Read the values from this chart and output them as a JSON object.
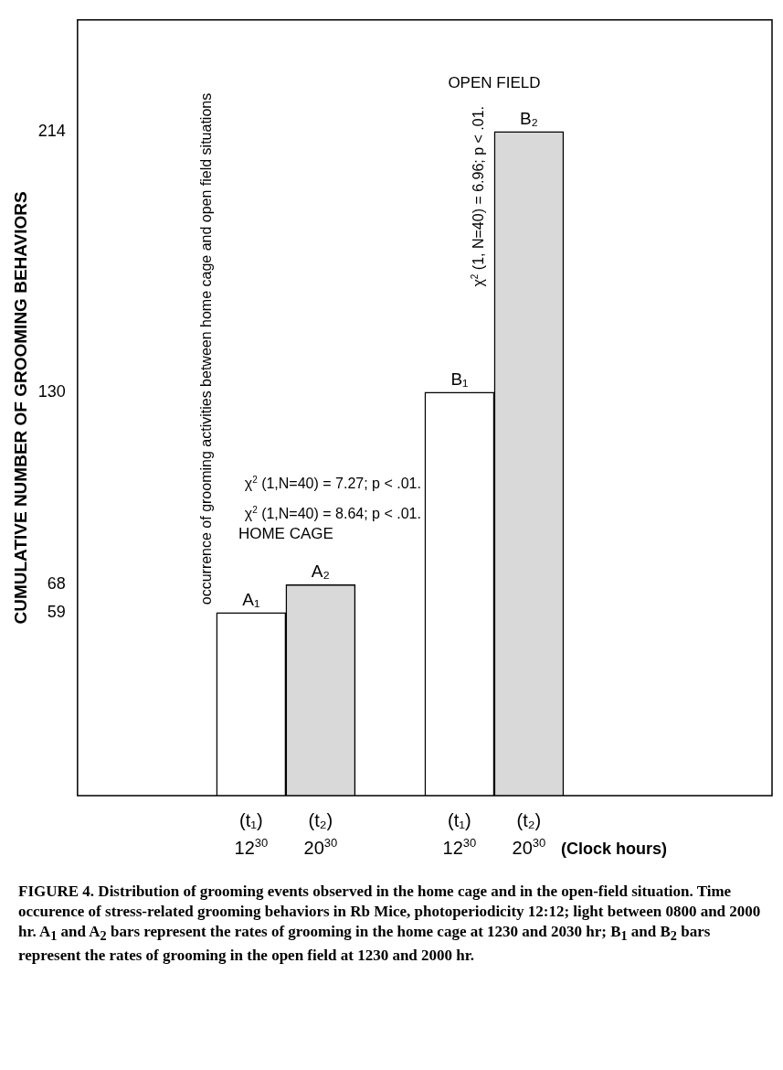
{
  "chart_data": {
    "type": "bar",
    "ylabel": "CUMULATIVE NUMBER OF GROOMING BEHAVIORS",
    "xlabel": "(Clock hours)",
    "categories": [
      null,
      null,
      "(t₁)\n12$^{30}$",
      "(t₂)\n20$^{30}$",
      null,
      "(t₁)\n12$^{30}$",
      "(t₂)\n20$^{30}$",
      null,
      null,
      null
    ],
    "values": [
      null,
      null,
      59,
      68,
      null,
      130,
      214,
      null,
      null,
      null
    ],
    "colors": [
      "#ffffff",
      "#ffffff",
      "#ffffff",
      "#d9d9d9",
      "#ffffff",
      "#ffffff",
      "#d9d9d9",
      "#ffffff",
      "#ffffff",
      "#ffffff"
    ],
    "value_labels": [
      null,
      null,
      "A₁",
      "A₂",
      null,
      "B₁",
      "B₂",
      null,
      null,
      null
    ],
    "ylim": [
      0,
      250
    ],
    "yticks": [
      59,
      68,
      130,
      214
    ],
    "legend": false,
    "annotations": [
      "HOME CAGE",
      "OPEN FIELD",
      "χ$^{2}$ (1,N=40) = 7.27; p < .01.",
      "χ$^{2}$ (1,N=40) = 8.64; p < .01.",
      "χ$^{2}$ (1, N=40) = 6.96; p < .01.",
      "occurrence of grooming activities between home cage and open field situations",
      "FIGURE 4. Distribution of grooming events observed in the home cage and in the open-field situation. Time occurence of stress-related grooming behaviors in Rb Mice, photoperiodicity 12:12; light between 0800 and 2000 hr. A$_{1}$ and A$_{2}$ bars represent the rates of grooming in the home cage at 1230 and 2030 hr; B$_{1}$ and B$_{2}$ bars represent the rates of grooming in the open field at 1230 and 2000 hr."
    ]
  }
}
